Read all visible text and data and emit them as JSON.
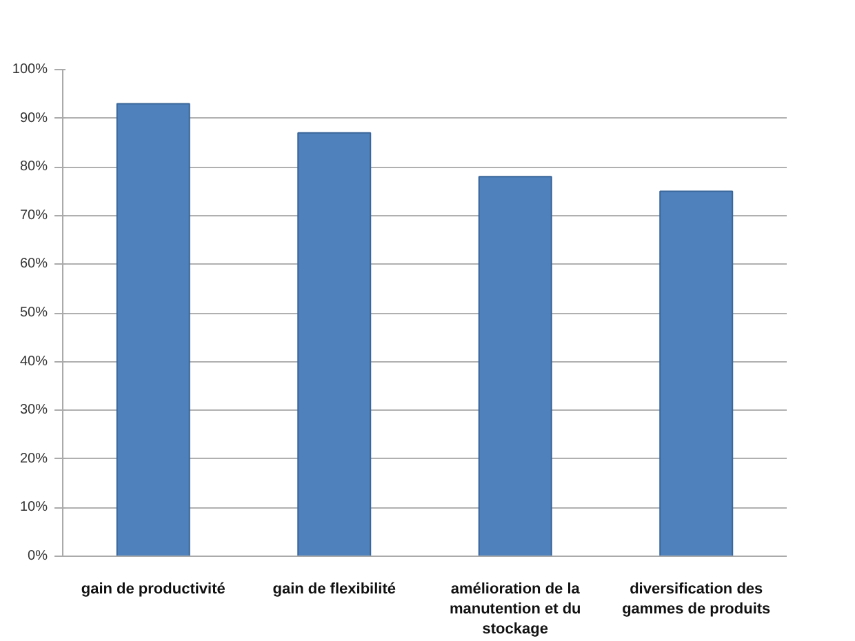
{
  "chart_data": {
    "type": "bar",
    "categories": [
      "gain de productivité",
      "gain de flexibilité",
      "amélioration de la manutention et du stockage",
      "diversification des gammes de produits"
    ],
    "values": [
      93,
      87,
      78,
      75
    ],
    "color": "#4f81bd",
    "ylim": [
      0,
      100
    ],
    "yticks": [
      {
        "value": 0,
        "label": "0%"
      },
      {
        "value": 10,
        "label": "10%"
      },
      {
        "value": 20,
        "label": "20%"
      },
      {
        "value": 30,
        "label": "30%"
      },
      {
        "value": 40,
        "label": "40%"
      },
      {
        "value": 50,
        "label": "50%"
      },
      {
        "value": 60,
        "label": "60%"
      },
      {
        "value": 70,
        "label": "70%"
      },
      {
        "value": 80,
        "label": "80%"
      },
      {
        "value": 90,
        "label": "90%"
      },
      {
        "value": 100,
        "label": "100%"
      }
    ],
    "grid": "y"
  }
}
